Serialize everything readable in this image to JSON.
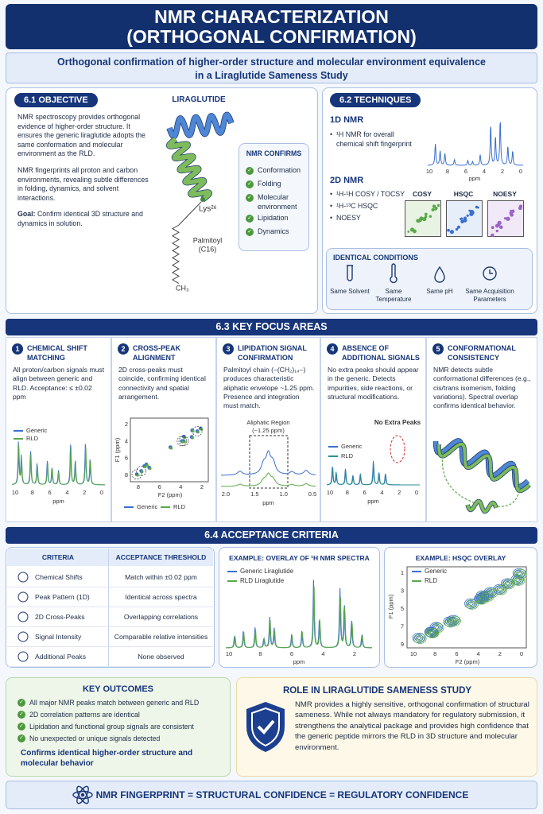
{
  "header": {
    "title": [
      "NMR CHARACTERIZATION",
      "(ORTHOGONAL CONFIRMATION)"
    ],
    "subtitle": [
      "Orthogonal confirmation of higher-order structure and molecular environment equivalence",
      "in a Liraglutide Sameness Study"
    ]
  },
  "objective": {
    "heading": "6.1 OBJECTIVE",
    "paragraphs": [
      "NMR spectroscopy provides orthogonal evidence of higher-order structure. It ensures the generic liraglutide adopts the same conformation and molecular environment as the RLD.",
      "NMR fingerprints all proton and carbon environments, revealing subtle differences in folding, dynamics, and solvent interactions."
    ],
    "goal_label": "Goal:",
    "goal_text": "Confirm identical 3D structure and dynamics in solution."
  },
  "molecule": {
    "title": "LIRAGLUTIDE",
    "residue": "Lys²⁶",
    "chain": [
      "Palmitoyl",
      "(C16)"
    ],
    "terminal": "CH₃"
  },
  "confirms": {
    "heading": "NMR CONFIRMS",
    "items": [
      "Conformation",
      "Folding",
      "Molecular environment",
      "Lipidation",
      "Dynamics"
    ]
  },
  "techniques": {
    "heading": "6.2 TECHNIQUES",
    "one_d": {
      "title": "1D NMR",
      "bullet": "¹H NMR for overall chemical shift fingerprint",
      "xticks": [
        "10",
        "8",
        "6",
        "4",
        "2",
        "0"
      ],
      "xlabel": "ppm"
    },
    "two_d": {
      "title": "2D NMR",
      "bullets": [
        "¹H-¹H COSY / TOCSY",
        "¹H-¹³C HSQC",
        "NOESY"
      ],
      "plots": [
        "COSY",
        "HSQC",
        "NOESY"
      ]
    },
    "conditions": {
      "heading": "IDENTICAL CONDITIONS",
      "items": [
        "Same Solvent",
        "Same Temperature",
        "Same pH",
        "Same Acquisition Parameters"
      ]
    }
  },
  "focus": {
    "heading": "6.3  KEY FOCUS AREAS",
    "items": [
      {
        "number": "1",
        "title": "CHEMICAL SHIFT MATCHING",
        "text": "All proton/carbon signals must align between generic and RLD. Acceptance: ≤ ±0.02 ppm",
        "legend": [
          "Generic",
          "RLD"
        ],
        "xticks": [
          "10",
          "8",
          "6",
          "4",
          "2",
          "0"
        ],
        "xlabel": "ppm"
      },
      {
        "number": "2",
        "title": "CROSS-PEAK ALIGNMENT",
        "text": "2D cross-peaks must coincide, confirming identical connectivity and spatial arrangement.",
        "ylabel": "F1 (ppm)",
        "yticks": [
          "2",
          "4",
          "6",
          "8"
        ],
        "xticks": [
          "8",
          "6",
          "4",
          "2"
        ],
        "xlabel": "F2 (ppm)",
        "legend": [
          "Generic",
          "RLD"
        ]
      },
      {
        "number": "3",
        "title": "LIPIDATION SIGNAL CONFIRMATION",
        "text": "Palmitoyl chain (–(CH₂)₁₄–) produces characteristic aliphatic envelope ~1.25 ppm. Presence and integration must match.",
        "region": [
          "Aliphatic Region",
          "(~1.25 ppm)"
        ],
        "xticks": [
          "2.0",
          "1.5",
          "1.0",
          "0.5"
        ],
        "xlabel": "ppm"
      },
      {
        "number": "4",
        "title": "ABSENCE OF ADDITIONAL SIGNALS",
        "text": "No extra peaks should appear in the generic. Detects impurities, side reactions, or structural modifications.",
        "legend": [
          "Generic",
          "RLD"
        ],
        "annotation": "No Extra Peaks",
        "xticks": [
          "10",
          "8",
          "6",
          "4",
          "2",
          "0"
        ],
        "xlabel": "ppm"
      },
      {
        "number": "5",
        "title": "CONFORMATIONAL CONSISTENCY",
        "text": "NMR detects subtle conformational differences (e.g., cis/trans isomerism, folding variations). Spectral overlap confirms identical behavior."
      }
    ]
  },
  "criteria": {
    "heading": "6.4  ACCEPTANCE CRITERIA",
    "columns": [
      "CRITERIA",
      "ACCEPTANCE THRESHOLD"
    ],
    "rows": [
      [
        "Chemical Shifts",
        "Match within ±0.02 ppm"
      ],
      [
        "Peak Pattern (1D)",
        "Identical across spectra"
      ],
      [
        "2D Cross-Peaks",
        "Overlapping correlations"
      ],
      [
        "Signal Intensity",
        "Comparable relative intensities"
      ],
      [
        "Additional Peaks",
        "None observed"
      ]
    ],
    "overlay": {
      "title": "EXAMPLE: OVERLAY OF ¹H NMR SPECTRA",
      "legend": [
        "Generic Liraglutide",
        "RLD Liraglutide"
      ],
      "xticks": [
        "10",
        "8",
        "6",
        "4",
        "2"
      ],
      "xlabel": "ppm"
    },
    "hsqc": {
      "title": "EXAMPLE: HSQC OVERLAY",
      "legend": [
        "Generic",
        "RLD"
      ],
      "yticks": [
        "1",
        "3",
        "5",
        "7",
        "9"
      ],
      "ylabel": "F1 (ppm)",
      "xticks": [
        "10",
        "8",
        "6",
        "4",
        "2",
        "0"
      ],
      "xlabel": "F2 (ppm)"
    }
  },
  "outcomes": {
    "heading": "KEY OUTCOMES",
    "items": [
      "All major NMR peaks match between generic and RLD",
      "2D correlation patterns are identical",
      "Lipidation and functional group signals are consistent",
      "No unexpected or unique signals detected"
    ],
    "conclusion": "Confirms identical higher-order structure and molecular behavior"
  },
  "role": {
    "heading": "ROLE IN  LIRAGLUTIDE SAMENESS STUDY",
    "text": "NMR provides a highly sensitive, orthogonal confirmation of structural sameness. While not always mandatory for regulatory submission, it strengthens the analytical package and provides high confidence that the generic peptide mirrors the RLD in 3D structure and molecular environment."
  },
  "footer": {
    "text": "NMR FINGERPRINT = STRUCTURAL CONFIDENCE = REGULATORY CONFIDENCE"
  }
}
